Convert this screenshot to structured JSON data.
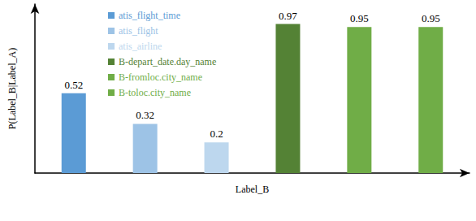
{
  "chart_data": {
    "type": "bar",
    "x_label": "Label_B",
    "y_label": "P(Label_B|Label_A)",
    "categories": [
      null
    ],
    "series": [
      {
        "name": "atis_flight_time",
        "color": "#5b9bd5",
        "values": [
          0.52
        ]
      },
      {
        "name": "atis_flight",
        "color": "#9dc3e6",
        "values": [
          0.32
        ]
      },
      {
        "name": "atis_airline",
        "color": "#bdd7ee",
        "values": [
          0.2
        ]
      },
      {
        "name": "B-depart_date.day_name",
        "color": "#548235",
        "values": [
          0.97
        ]
      },
      {
        "name": "B-fromloc.city_name",
        "color": "#70ad47",
        "values": [
          0.95
        ]
      },
      {
        "name": "B-toloc.city_name",
        "color": "#70ad47",
        "values": [
          0.95
        ]
      }
    ],
    "ylim": [
      0,
      1.1
    ],
    "grid": false,
    "legend": "upper left",
    "data_labels": true,
    "tick_labels": false
  }
}
